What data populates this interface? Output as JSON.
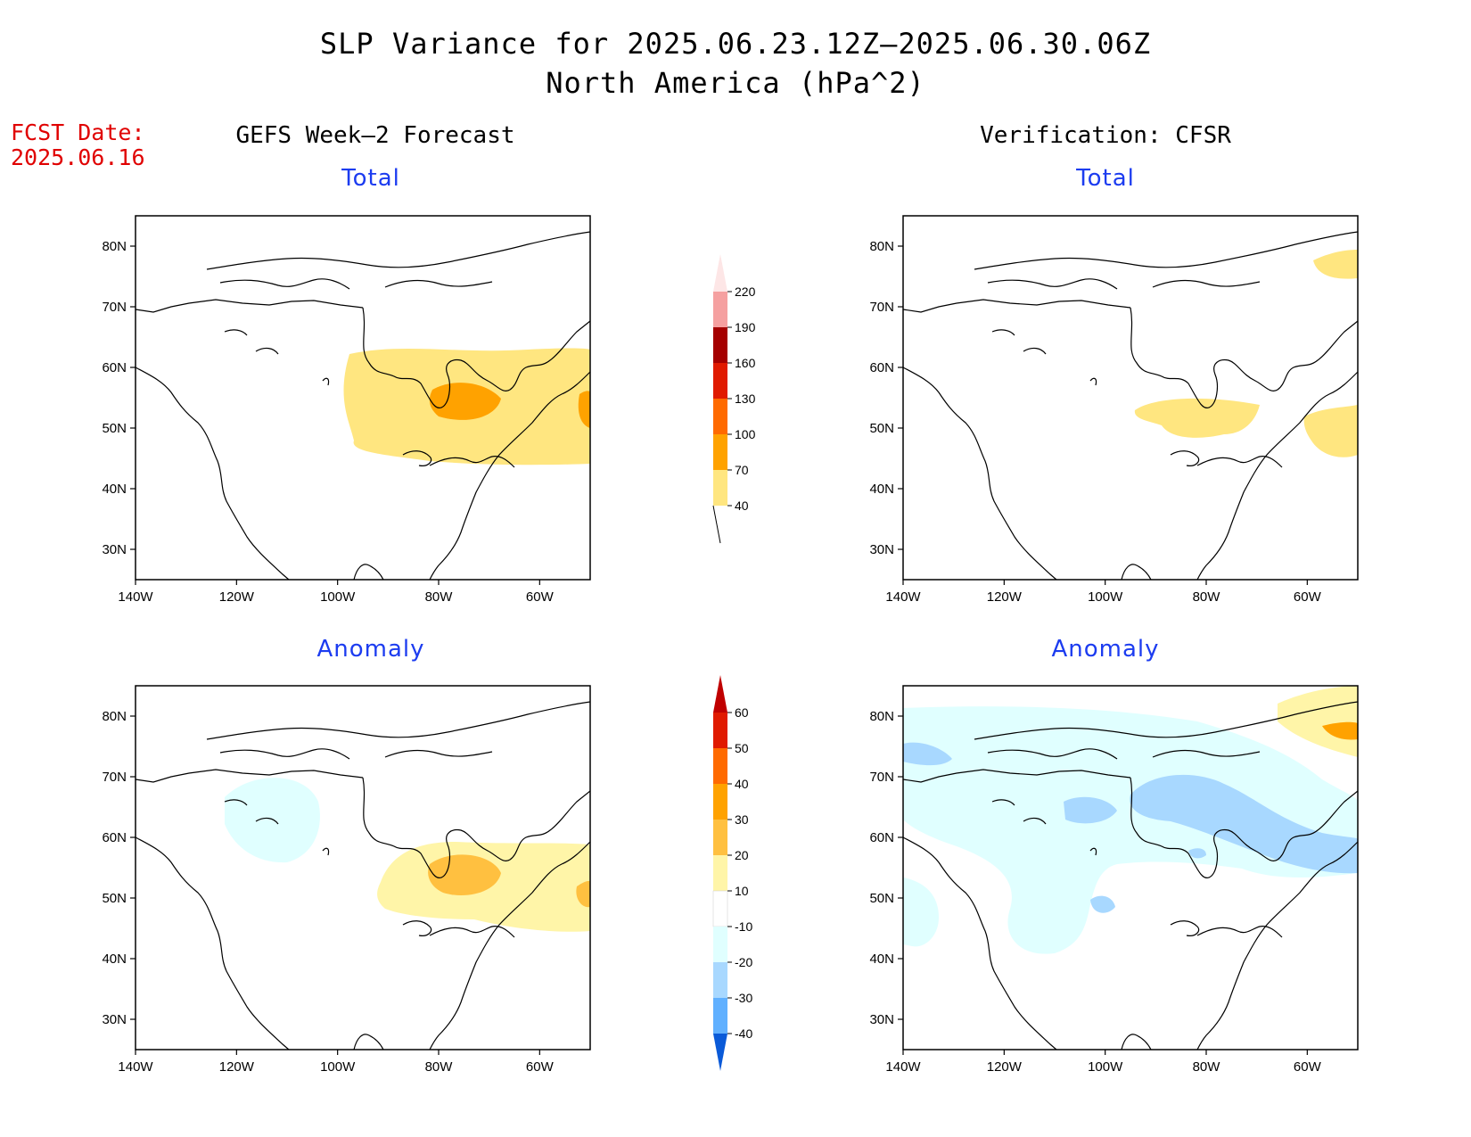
{
  "title": {
    "line1": "SLP Variance for 2025.06.23.12Z–2025.06.30.06Z",
    "line2": "North America (hPa^2)"
  },
  "fcst": {
    "line1": "FCST Date:",
    "line2": "2025.06.16"
  },
  "columns": {
    "left": "GEFS Week–2 Forecast",
    "right": "Verification: CFSR"
  },
  "panels": [
    {
      "id": "fcst-total",
      "title": "Total"
    },
    {
      "id": "verif-total",
      "title": "Total"
    },
    {
      "id": "fcst-anomaly",
      "title": "Anomaly"
    },
    {
      "id": "verif-anomaly",
      "title": "Anomaly"
    }
  ],
  "axes": {
    "lon_ticks": [
      "140W",
      "120W",
      "100W",
      "80W",
      "60W"
    ],
    "lat_ticks": [
      "80N",
      "70N",
      "60N",
      "50N",
      "40N",
      "30N"
    ],
    "lon_range": [
      -140,
      -50
    ],
    "lat_range": [
      25,
      85
    ]
  },
  "colorbars": {
    "total": {
      "levels": [
        "40",
        "70",
        "100",
        "130",
        "160",
        "190",
        "220"
      ],
      "colors": [
        "#ffe680",
        "#ffa200",
        "#ff6a00",
        "#e01a00",
        "#a50000",
        "#f5a0a0",
        "#fde6e6"
      ]
    },
    "anomaly": {
      "levels": [
        "60",
        "50",
        "40",
        "30",
        "20",
        "10",
        "-10",
        "-20",
        "-30",
        "-40"
      ],
      "colors": [
        "#c00000",
        "#e01a00",
        "#ff6a00",
        "#ffa200",
        "#ffc040",
        "#fff5a8",
        "#ffffff",
        "#e0ffff",
        "#a8d8ff",
        "#60b0ff",
        "#1e78f0",
        "#0a5ad8"
      ]
    }
  },
  "palette": {
    "yellow": "#ffe680",
    "lightyellow": "#fff5a8",
    "orange": "#ffa200",
    "paleblue": "#e0ffff",
    "blue": "#a8d8ff",
    "title_blue": "#1c3cf0",
    "fcst_red": "#e00000"
  }
}
